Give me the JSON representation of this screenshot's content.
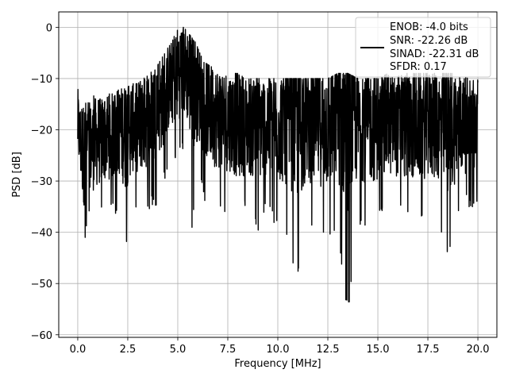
{
  "chart_data": {
    "type": "line",
    "title": "",
    "xlabel": "Frequency [MHz]",
    "ylabel": "PSD [dB]",
    "xlim": [
      -0.95,
      20.95
    ],
    "ylim": [
      -60.5,
      3
    ],
    "xticks": [
      0,
      2.5,
      5,
      7.5,
      10,
      12.5,
      15,
      17.5,
      20
    ],
    "xtick_labels": [
      "0.0",
      "2.5",
      "5.0",
      "7.5",
      "10.0",
      "12.5",
      "15.0",
      "17.5",
      "20.0"
    ],
    "yticks": [
      0,
      -10,
      -20,
      -30,
      -40,
      -50,
      -60
    ],
    "ytick_labels": [
      "0",
      "−10",
      "−20",
      "−30",
      "−40",
      "−50",
      "−60"
    ],
    "grid": true,
    "legend_position": "top-right",
    "line_color": "#000000",
    "legend": {
      "lines": [
        "ENOB: -4.0 bits",
        "SNR: -22.26 dB",
        "SINAD: -22.31 dB",
        "SFDR: 0.17"
      ]
    },
    "series": [
      {
        "x": [
          0,
          0.05,
          0.1,
          0.2,
          0.3,
          0.45,
          0.6,
          0.8,
          1.0,
          1.2,
          1.5,
          1.8,
          2.1,
          2.4,
          2.7,
          3.0,
          3.3,
          3.6,
          3.9,
          4.2,
          4.5,
          4.7,
          4.9,
          5.1,
          5.3,
          5.5,
          5.7,
          5.9,
          6.1,
          6.4,
          6.8,
          7.2,
          7.6,
          8.0,
          8.5,
          9.0,
          9.5,
          10.0,
          10.5,
          11.0,
          11.5,
          12.0,
          12.5,
          13.0,
          13.5,
          14.0,
          14.5,
          15.0,
          15.5,
          16.0,
          16.5,
          17.0,
          17.5,
          18.0,
          18.5,
          19.0,
          19.5,
          20.0
        ],
        "y_mean": [
          -19,
          -20,
          -22,
          -23,
          -24,
          -24,
          -23,
          -23,
          -22,
          -22,
          -21,
          -21,
          -20,
          -20,
          -19,
          -19,
          -18,
          -17,
          -16,
          -14,
          -12,
          -10,
          -9,
          -8,
          -8,
          -9,
          -10,
          -11,
          -13,
          -15,
          -17,
          -18,
          -18,
          -19,
          -19,
          -19,
          -19,
          -19,
          -19,
          -19,
          -19,
          -19,
          -19,
          -18,
          -18,
          -19,
          -19,
          -19,
          -19,
          -19,
          -19,
          -19,
          -19,
          -19,
          -19,
          -19,
          -19,
          -19
        ],
        "y_max": [
          -9,
          -11,
          -14,
          -15,
          -16,
          -14,
          -14,
          -13,
          -14,
          -14,
          -13,
          -13,
          -12,
          -12,
          -11,
          -11,
          -10,
          -9,
          -8,
          -6,
          -4,
          -3,
          -1,
          0,
          0,
          -1,
          -2,
          -3,
          -5,
          -7,
          -8,
          -9,
          -9,
          -9,
          -10,
          -10,
          -10,
          -10,
          -10,
          -10,
          -10,
          -10,
          -10,
          -9,
          -9,
          -10,
          -10,
          -10,
          -9,
          -9,
          -9,
          -9,
          -9,
          -9,
          -9,
          -9,
          -10,
          -10
        ],
        "y_min": [
          -28,
          -30,
          -33,
          -40,
          -45,
          -40,
          -36,
          -37,
          -38,
          -37,
          -36,
          -37,
          -36,
          -44,
          -36,
          -36,
          -37,
          -36,
          -35,
          -33,
          -27,
          -28,
          -27,
          -26,
          -25,
          -27,
          -41,
          -33,
          -31,
          -35,
          -35,
          -36,
          -36,
          -37,
          -36,
          -40,
          -36,
          -40,
          -42,
          -50,
          -40,
          -42,
          -43,
          -42,
          -57,
          -38,
          -41,
          -39,
          -36,
          -36,
          -38,
          -38,
          -37,
          -38,
          -46,
          -37,
          -35,
          -36
        ]
      }
    ]
  }
}
